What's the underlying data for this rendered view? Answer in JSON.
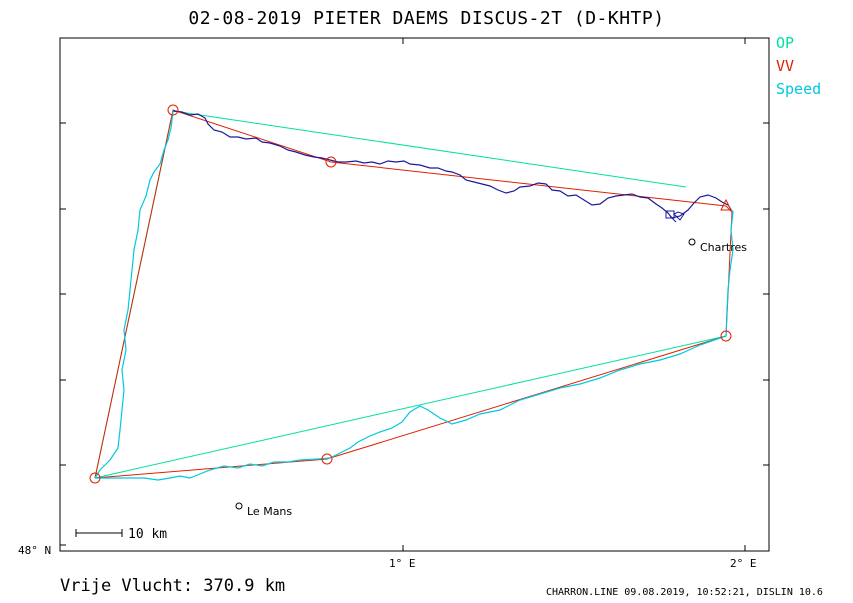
{
  "title": "02-08-2019    PIETER DAEMS    DISCUS-2T (D-KHTP)",
  "legend": [
    {
      "label": "OP",
      "color": "#00e0a0"
    },
    {
      "label": "VV",
      "color": "#e02000"
    },
    {
      "label": "Speed",
      "color": "#00c8e0"
    }
  ],
  "axes": {
    "lat_label": "48° N",
    "lon_labels": [
      "1° E",
      "2° E"
    ]
  },
  "places": [
    "Chartres",
    "Le Mans"
  ],
  "scale_bar": "10 km",
  "footer": {
    "distance": "Vrije Vlucht:  370.9 km",
    "info": "CHARRON.LINE 09.08.2019, 10:52:21, DISLIN 10.6"
  },
  "colors": {
    "op_line": "#00e0a0",
    "vv_line": "#e02000",
    "track_dark": "#1a1a9a",
    "track_light": "#00c8e0"
  }
}
